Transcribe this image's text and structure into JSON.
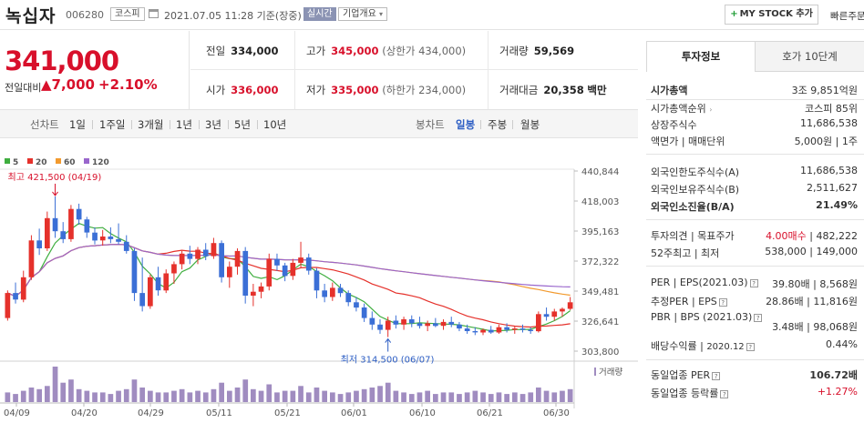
{
  "header": {
    "name": "녹십자",
    "code": "006280",
    "market": "코스피",
    "datetime": "2021.07.05 11:28 기준(장중)",
    "live": "실시간",
    "corp_info": "기업개요",
    "my_stock": "MY STOCK 추가",
    "quick": "빠른주문"
  },
  "price": {
    "current": "341,000",
    "diff_label": "전일대비",
    "diff_value": "▲7,000",
    "diff_pct": "+2.10%"
  },
  "quote": {
    "prev_label": "전일",
    "prev": "334,000",
    "high_label": "고가",
    "high": "345,000",
    "upper": "(상한가 434,000)",
    "volume_label": "거래량",
    "volume": "59,569",
    "open_label": "시가",
    "open": "336,000",
    "low_label": "저가",
    "low": "335,000",
    "lower": "(하한가 234,000)",
    "amount_label": "거래대금",
    "amount": "20,358",
    "amount_unit": "백만"
  },
  "toolbar": {
    "line_label": "선차트",
    "periods": [
      "1일",
      "1주일",
      "3개월",
      "1년",
      "3년",
      "5년",
      "10년"
    ],
    "candle_label": "봉차트",
    "candles": [
      "일봉",
      "주봉",
      "월봉"
    ]
  },
  "chart_data": {
    "type": "candlestick",
    "legend": [
      {
        "name": "5",
        "color": "#3fae3f"
      },
      {
        "name": "20",
        "color": "#e5312b"
      },
      {
        "name": "60",
        "color": "#f29a2e"
      },
      {
        "name": "120",
        "color": "#9966cc"
      }
    ],
    "y_ticks": [
      "440,844",
      "418,003",
      "395,163",
      "372,322",
      "349,481",
      "326,641",
      "303,800"
    ],
    "ylim": [
      303800,
      440844
    ],
    "x_ticks": [
      "04/09",
      "04/20",
      "04/29",
      "05/11",
      "05/21",
      "06/01",
      "06/10",
      "06/21",
      "06/30"
    ],
    "high_note": "최고 421,500 (04/19)",
    "low_note": "최저 314,500 (06/07)",
    "volume_label": "거래량",
    "up_color": "#e5312b",
    "down_color": "#3b6fd6",
    "candles": [
      {
        "o": 329000,
        "h": 350000,
        "l": 327000,
        "c": 348000
      },
      {
        "o": 348000,
        "h": 356000,
        "l": 340000,
        "c": 343000
      },
      {
        "o": 343000,
        "h": 365000,
        "l": 341000,
        "c": 360000
      },
      {
        "o": 360000,
        "h": 392000,
        "l": 358000,
        "c": 388000
      },
      {
        "o": 388000,
        "h": 397000,
        "l": 377000,
        "c": 382000
      },
      {
        "o": 382000,
        "h": 410000,
        "l": 380000,
        "c": 405000
      },
      {
        "o": 405000,
        "h": 421500,
        "l": 390000,
        "c": 395000
      },
      {
        "o": 395000,
        "h": 402000,
        "l": 386000,
        "c": 389000
      },
      {
        "o": 389000,
        "h": 415000,
        "l": 387000,
        "c": 412000
      },
      {
        "o": 412000,
        "h": 416000,
        "l": 400000,
        "c": 404000
      },
      {
        "o": 404000,
        "h": 406000,
        "l": 390000,
        "c": 394000
      },
      {
        "o": 394000,
        "h": 398000,
        "l": 385000,
        "c": 388000
      },
      {
        "o": 388000,
        "h": 396000,
        "l": 384000,
        "c": 391000
      },
      {
        "o": 391000,
        "h": 398000,
        "l": 386000,
        "c": 389000
      },
      {
        "o": 389000,
        "h": 401000,
        "l": 385000,
        "c": 387000
      },
      {
        "o": 387000,
        "h": 392000,
        "l": 378000,
        "c": 380000
      },
      {
        "o": 380000,
        "h": 382000,
        "l": 342000,
        "c": 348000
      },
      {
        "o": 348000,
        "h": 375000,
        "l": 334000,
        "c": 338000
      },
      {
        "o": 338000,
        "h": 362000,
        "l": 336000,
        "c": 360000
      },
      {
        "o": 360000,
        "h": 368000,
        "l": 346000,
        "c": 350000
      },
      {
        "o": 350000,
        "h": 366000,
        "l": 348000,
        "c": 363000
      },
      {
        "o": 363000,
        "h": 372000,
        "l": 355000,
        "c": 370000
      },
      {
        "o": 370000,
        "h": 380000,
        "l": 366000,
        "c": 378000
      },
      {
        "o": 378000,
        "h": 384000,
        "l": 370000,
        "c": 374000
      },
      {
        "o": 374000,
        "h": 383000,
        "l": 370000,
        "c": 381000
      },
      {
        "o": 381000,
        "h": 386000,
        "l": 373000,
        "c": 376000
      },
      {
        "o": 376000,
        "h": 390000,
        "l": 374000,
        "c": 386000
      },
      {
        "o": 386000,
        "h": 388000,
        "l": 356000,
        "c": 360000
      },
      {
        "o": 360000,
        "h": 372000,
        "l": 352000,
        "c": 368000
      },
      {
        "o": 368000,
        "h": 382000,
        "l": 362000,
        "c": 380000
      },
      {
        "o": 380000,
        "h": 383000,
        "l": 340000,
        "c": 346000
      },
      {
        "o": 346000,
        "h": 355000,
        "l": 338000,
        "c": 349000
      },
      {
        "o": 349000,
        "h": 356000,
        "l": 344000,
        "c": 353000
      },
      {
        "o": 353000,
        "h": 378000,
        "l": 350000,
        "c": 374000
      },
      {
        "o": 374000,
        "h": 378000,
        "l": 365000,
        "c": 369000
      },
      {
        "o": 369000,
        "h": 371000,
        "l": 357000,
        "c": 361000
      },
      {
        "o": 361000,
        "h": 374000,
        "l": 358000,
        "c": 371000
      },
      {
        "o": 371000,
        "h": 387000,
        "l": 367000,
        "c": 375000
      },
      {
        "o": 375000,
        "h": 378000,
        "l": 362000,
        "c": 365000
      },
      {
        "o": 365000,
        "h": 367000,
        "l": 344000,
        "c": 350000
      },
      {
        "o": 350000,
        "h": 355000,
        "l": 341000,
        "c": 345000
      },
      {
        "o": 345000,
        "h": 356000,
        "l": 342000,
        "c": 352000
      },
      {
        "o": 352000,
        "h": 355000,
        "l": 345000,
        "c": 348000
      },
      {
        "o": 348000,
        "h": 350000,
        "l": 338000,
        "c": 341000
      },
      {
        "o": 341000,
        "h": 345000,
        "l": 334000,
        "c": 337000
      },
      {
        "o": 337000,
        "h": 340000,
        "l": 326000,
        "c": 329000
      },
      {
        "o": 329000,
        "h": 334000,
        "l": 320000,
        "c": 324000
      },
      {
        "o": 324000,
        "h": 328000,
        "l": 317000,
        "c": 320000
      },
      {
        "o": 320000,
        "h": 330000,
        "l": 314500,
        "c": 327000
      },
      {
        "o": 327000,
        "h": 331000,
        "l": 321000,
        "c": 324000
      },
      {
        "o": 324000,
        "h": 330000,
        "l": 320000,
        "c": 328000
      },
      {
        "o": 328000,
        "h": 331000,
        "l": 322000,
        "c": 325000
      },
      {
        "o": 325000,
        "h": 330000,
        "l": 321000,
        "c": 323000
      },
      {
        "o": 323000,
        "h": 327000,
        "l": 319000,
        "c": 325000
      },
      {
        "o": 325000,
        "h": 329000,
        "l": 322000,
        "c": 323000
      },
      {
        "o": 323000,
        "h": 328000,
        "l": 320000,
        "c": 326000
      },
      {
        "o": 326000,
        "h": 330000,
        "l": 322000,
        "c": 324000
      },
      {
        "o": 324000,
        "h": 326000,
        "l": 319000,
        "c": 321000
      },
      {
        "o": 321000,
        "h": 324000,
        "l": 317000,
        "c": 319000
      },
      {
        "o": 319000,
        "h": 322000,
        "l": 316000,
        "c": 318000
      },
      {
        "o": 318000,
        "h": 321000,
        "l": 316000,
        "c": 320000
      },
      {
        "o": 320000,
        "h": 323000,
        "l": 317000,
        "c": 318000
      },
      {
        "o": 318000,
        "h": 324000,
        "l": 317000,
        "c": 322000
      },
      {
        "o": 322000,
        "h": 325000,
        "l": 318000,
        "c": 320000
      },
      {
        "o": 320000,
        "h": 323000,
        "l": 317000,
        "c": 321000
      },
      {
        "o": 321000,
        "h": 324000,
        "l": 318000,
        "c": 320000
      },
      {
        "o": 320000,
        "h": 322000,
        "l": 317000,
        "c": 319000
      },
      {
        "o": 319000,
        "h": 334000,
        "l": 318000,
        "c": 332000
      },
      {
        "o": 332000,
        "h": 337000,
        "l": 327000,
        "c": 330000
      },
      {
        "o": 330000,
        "h": 336000,
        "l": 327000,
        "c": 334000
      },
      {
        "o": 334000,
        "h": 337000,
        "l": 330000,
        "c": 336000
      },
      {
        "o": 336000,
        "h": 345000,
        "l": 335000,
        "c": 341000
      }
    ],
    "volumes": [
      6,
      5,
      7,
      9,
      8,
      10,
      22,
      12,
      14,
      8,
      7,
      6,
      6,
      5,
      7,
      8,
      14,
      9,
      7,
      6,
      6,
      7,
      8,
      6,
      7,
      6,
      8,
      12,
      7,
      9,
      14,
      8,
      7,
      11,
      6,
      7,
      7,
      10,
      6,
      9,
      7,
      6,
      5,
      6,
      7,
      8,
      9,
      10,
      12,
      7,
      6,
      5,
      6,
      7,
      5,
      6,
      6,
      5,
      6,
      7,
      6,
      5,
      6,
      5,
      6,
      5,
      6,
      9,
      7,
      6,
      7,
      8
    ]
  },
  "tabs": {
    "info": "투자정보",
    "hoga": "호가 10단계"
  },
  "invest": {
    "mcap_label": "시가총액",
    "mcap": "3조 9,851억원",
    "rank_label": "시가총액순위",
    "rank": "코스피 85위",
    "shares_label": "상장주식수",
    "shares": "11,686,538",
    "par_label": "액면가 | 매매단위",
    "par": "5,000원 | 1주",
    "flimit_label": "외국인한도주식수(A)",
    "flimit": "11,686,538",
    "fhold_label": "외국인보유주식수(B)",
    "fhold": "2,511,627",
    "fratio_label": "외국인소진율(B/A)",
    "fratio": "21.49%",
    "opinion_label": "투자의견 | 목표주가",
    "opinion": "4.00매수",
    "target": "482,222",
    "w52_label": "52주최고 | 최저",
    "w52_high": "538,000",
    "w52_low": "149,000",
    "per_label": "PER | EPS(2021.03)",
    "per": "39.80배",
    "eps": "8,568원",
    "fper_label": "추정PER | EPS",
    "fper": "28.86배",
    "feps": "11,816원",
    "pbr_label": "PBR | BPS (2021.03)",
    "pbr": "3.48배",
    "bps": "98,068원",
    "div_label": "배당수익률",
    "div_date": "2020.12",
    "div": "0.44%",
    "sector_per_label": "동일업종 PER",
    "sector_per": "106.72배",
    "sector_rate_label": "동일업종 등락률",
    "sector_rate": "+1.27%"
  }
}
